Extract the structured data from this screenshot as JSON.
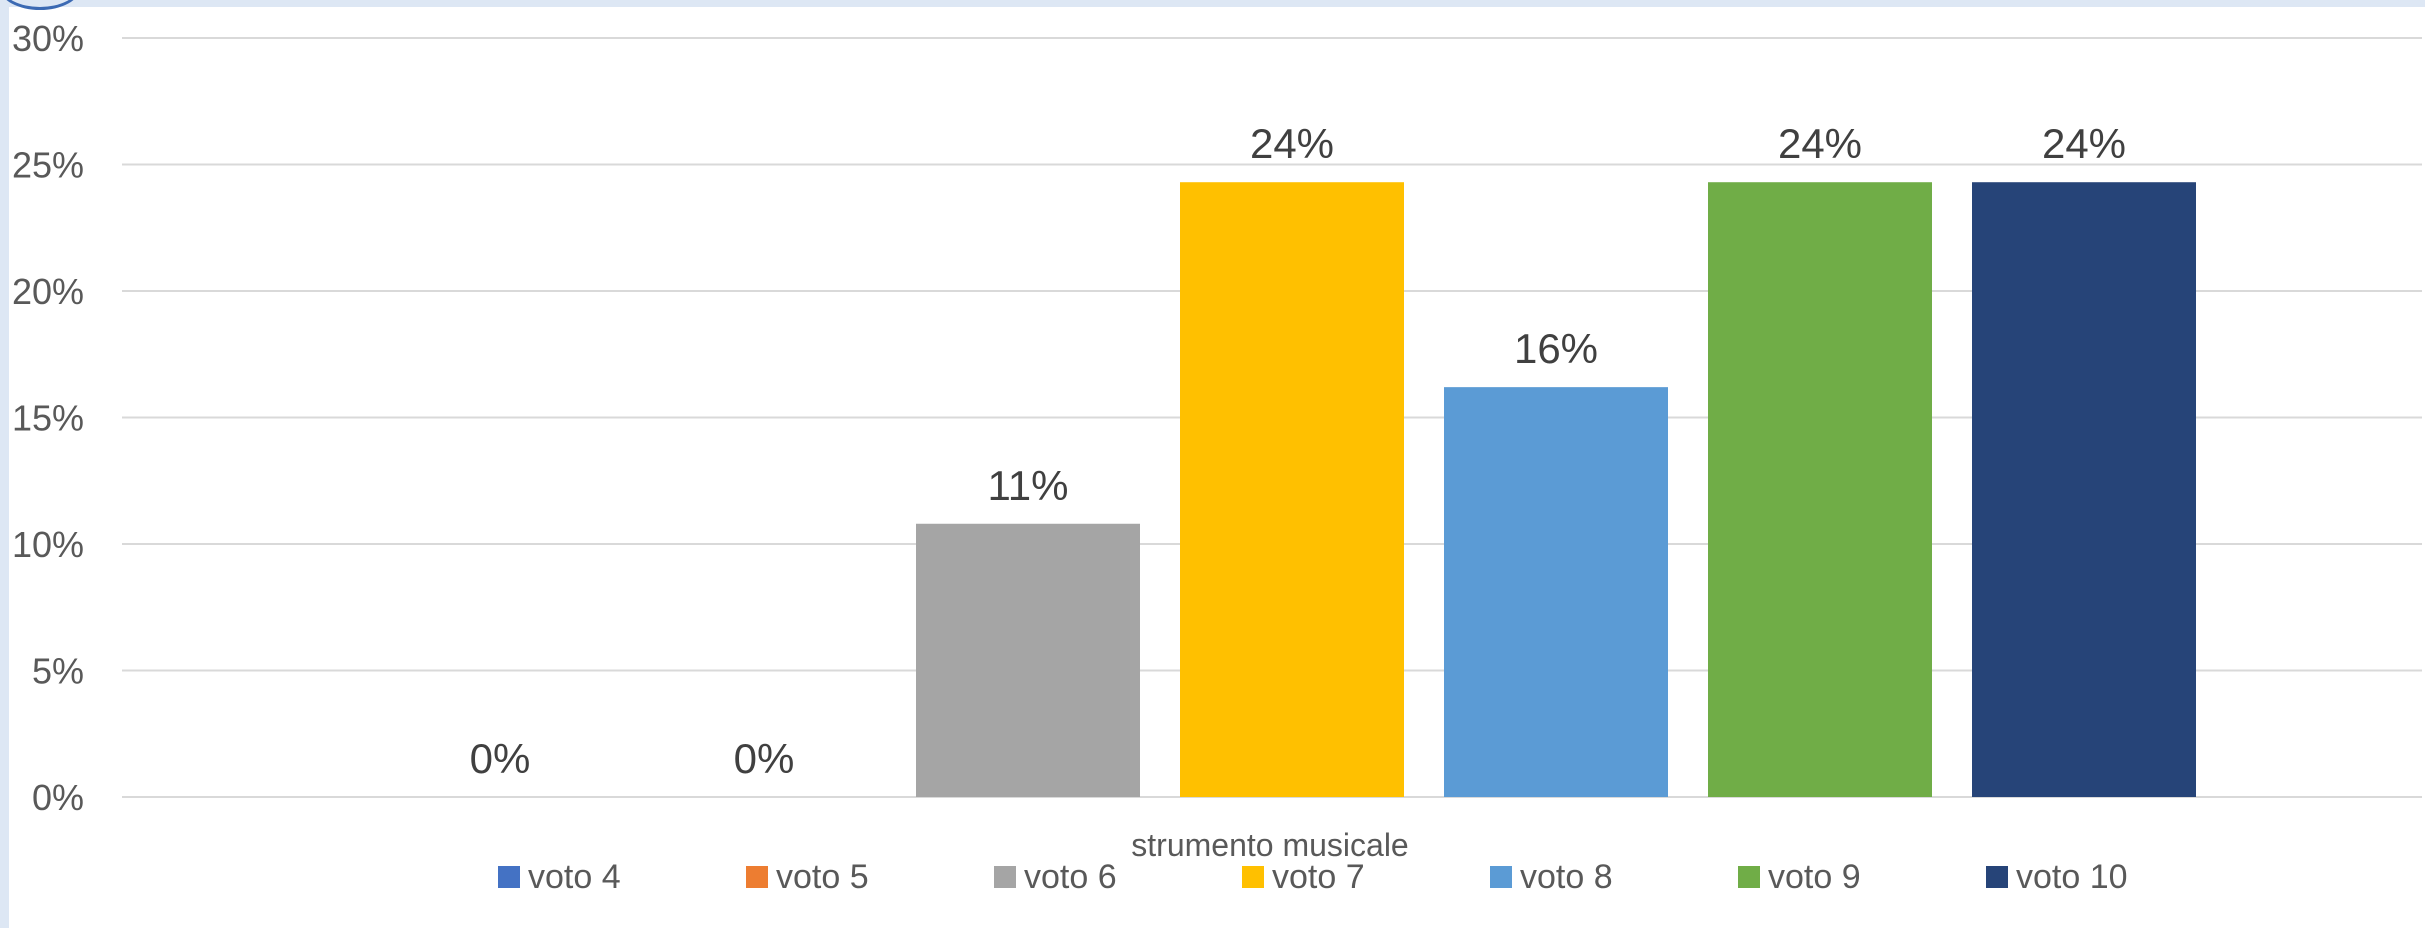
{
  "chart_data": {
    "type": "bar",
    "xlabel": "strumento musicale",
    "ylim": [
      0,
      30
    ],
    "y_ticks": [
      "0%",
      "5%",
      "10%",
      "15%",
      "20%",
      "25%",
      "30%"
    ],
    "grid": true,
    "legend_position": "bottom",
    "categories": [
      "strumento musicale"
    ],
    "series": [
      {
        "name": "voto 4",
        "value": 0,
        "label": "0%",
        "color": "#4472c4"
      },
      {
        "name": "voto 5",
        "value": 0,
        "label": "0%",
        "color": "#ed7d31"
      },
      {
        "name": "voto 6",
        "value": 10.8,
        "label": "11%",
        "color": "#a5a5a5"
      },
      {
        "name": "voto 7",
        "value": 24.3,
        "label": "24%",
        "color": "#ffc000"
      },
      {
        "name": "voto 8",
        "value": 16.2,
        "label": "16%",
        "color": "#5b9bd5"
      },
      {
        "name": "voto 9",
        "value": 24.3,
        "label": "24%",
        "color": "#70ad47"
      },
      {
        "name": "voto 10",
        "value": 24.3,
        "label": "24%",
        "color": "#264478"
      }
    ]
  }
}
